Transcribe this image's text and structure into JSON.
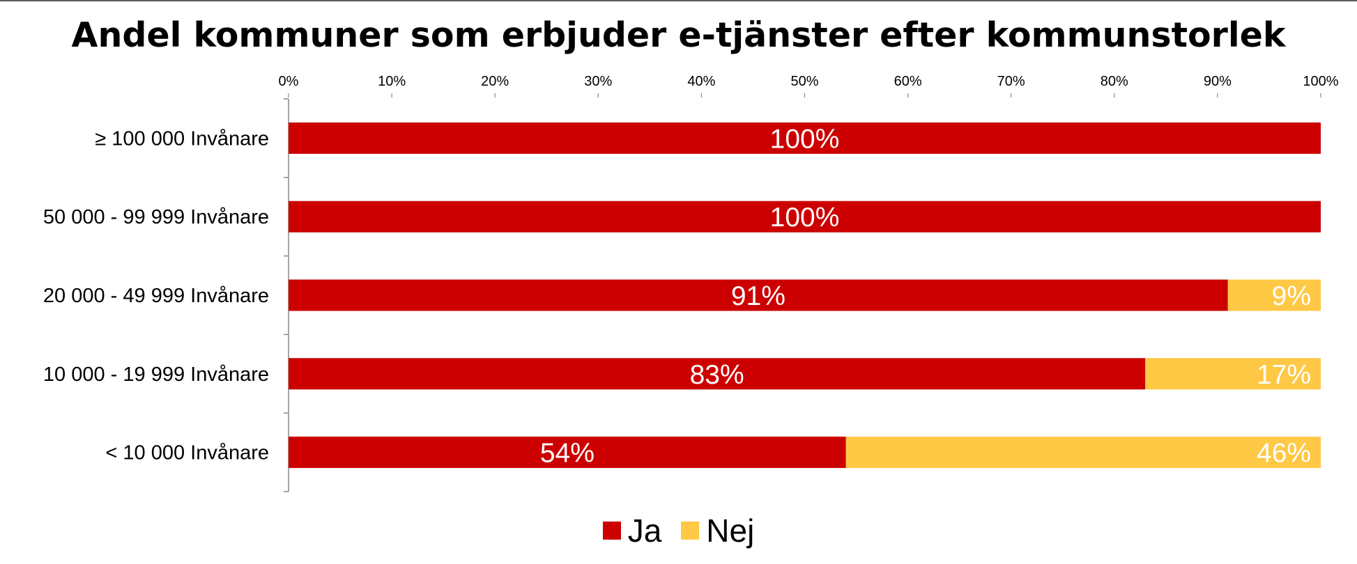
{
  "chart_data": {
    "type": "bar",
    "orientation": "horizontal",
    "stacked": true,
    "title": "Andel kommuner som erbjuder e-tjänster efter kommunstorlek",
    "categories": [
      "≥ 100 000 Invånare",
      "50 000 - 99 999 Invånare",
      "20 000 - 49 999 Invånare",
      "10 000 - 19 999 Invånare",
      "< 10 000 Invånare"
    ],
    "series": [
      {
        "name": "Ja",
        "color": "#CC0000",
        "values": [
          100,
          100,
          91,
          83,
          54
        ],
        "labels": [
          "100%",
          "100%",
          "91%",
          "83%",
          "54%"
        ]
      },
      {
        "name": "Nej",
        "color": "#FFC845",
        "values": [
          0,
          0,
          9,
          17,
          46
        ],
        "labels": [
          "",
          "",
          "9%",
          "17%",
          "46%"
        ]
      }
    ],
    "xlim": [
      0,
      100
    ],
    "xticks": [
      "0%",
      "10%",
      "20%",
      "30%",
      "40%",
      "50%",
      "60%",
      "70%",
      "80%",
      "90%",
      "100%"
    ],
    "x_axis_position": "top",
    "grid": false,
    "legend_position": "bottom"
  }
}
